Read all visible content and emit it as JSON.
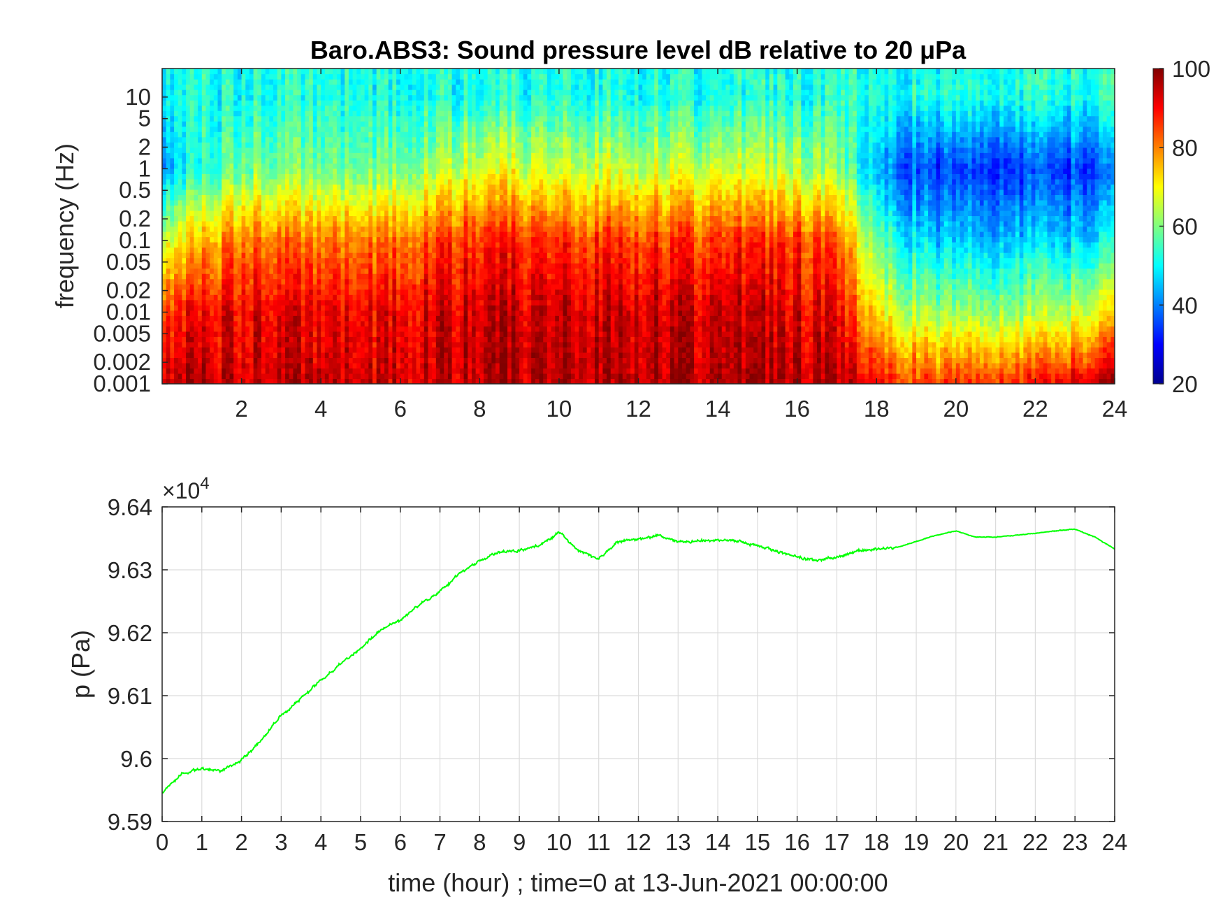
{
  "chart_data": [
    {
      "type": "heatmap",
      "title": "Baro.ABS3: Sound pressure level dB relative to 20 μPa",
      "ylabel": "frequency (Hz)",
      "xlabel": "",
      "x_tick_labels": [
        "2",
        "4",
        "6",
        "8",
        "10",
        "12",
        "14",
        "16",
        "18",
        "20",
        "22",
        "24"
      ],
      "y_tick_labels": [
        "10",
        "5",
        "2",
        "1",
        "0.5",
        "0.2",
        "0.1",
        "0.05",
        "0.02",
        "0.01",
        "0.005",
        "0.002",
        "0.001"
      ],
      "y_scale": "log",
      "xlim": [
        0,
        24
      ],
      "ylim": [
        0.001,
        25
      ],
      "colormap": "jet",
      "colorbar": {
        "ticks": [
          "20",
          "40",
          "60",
          "80",
          "100"
        ],
        "range": [
          20,
          100
        ]
      },
      "summary_spl_db": {
        "note_free": true,
        "hours": [
          0,
          2,
          4,
          6,
          8,
          10,
          12,
          14,
          16,
          17,
          18,
          19,
          20,
          22,
          24
        ],
        "freq_hz": [
          10,
          1,
          0.1,
          0.01,
          0.001
        ],
        "values": [
          [
            52,
            45,
            68,
            88,
            96
          ],
          [
            52,
            60,
            82,
            92,
            94
          ],
          [
            52,
            58,
            80,
            90,
            94
          ],
          [
            52,
            60,
            82,
            92,
            94
          ],
          [
            52,
            68,
            88,
            94,
            96
          ],
          [
            52,
            66,
            86,
            94,
            96
          ],
          [
            52,
            66,
            86,
            94,
            96
          ],
          [
            52,
            66,
            86,
            94,
            96
          ],
          [
            52,
            64,
            86,
            92,
            96
          ],
          [
            52,
            60,
            82,
            90,
            94
          ],
          [
            52,
            44,
            58,
            72,
            90
          ],
          [
            52,
            36,
            48,
            64,
            86
          ],
          [
            52,
            34,
            46,
            62,
            86
          ],
          [
            52,
            34,
            46,
            62,
            88
          ],
          [
            52,
            36,
            48,
            70,
            96
          ]
        ]
      }
    },
    {
      "type": "line",
      "title": "",
      "xlabel": "time (hour) ; time=0 at 13-Jun-2021 00:00:00",
      "ylabel": "p (Pa)",
      "exponent_label": "×10",
      "exponent_power": "4",
      "x_tick_labels": [
        "0",
        "1",
        "2",
        "3",
        "4",
        "5",
        "6",
        "7",
        "8",
        "9",
        "10",
        "11",
        "12",
        "13",
        "14",
        "15",
        "16",
        "17",
        "18",
        "19",
        "20",
        "21",
        "22",
        "23",
        "24"
      ],
      "y_tick_labels": [
        "9.59",
        "9.6",
        "9.61",
        "9.62",
        "9.63",
        "9.64"
      ],
      "xlim": [
        0,
        24
      ],
      "ylim": [
        95900,
        96400
      ],
      "grid": true,
      "color": "#00ff00",
      "series": [
        {
          "x": [
            0,
            0.5,
            1,
            1.5,
            2,
            2.5,
            3,
            3.5,
            4,
            4.5,
            5,
            5.5,
            6,
            6.5,
            7,
            7.5,
            8,
            8.5,
            9,
            9.5,
            10,
            10.5,
            11,
            11.5,
            12,
            12.5,
            13,
            13.5,
            14,
            14.5,
            15,
            15.5,
            16,
            16.5,
            17,
            17.5,
            18,
            18.5,
            19,
            19.5,
            20,
            20.5,
            21,
            21.5,
            22,
            22.5,
            23,
            23.5,
            24
          ],
          "y": [
            95945,
            95975,
            95985,
            95980,
            95998,
            96030,
            96070,
            96095,
            96125,
            96150,
            96175,
            96205,
            96220,
            96245,
            96265,
            96295,
            96315,
            96328,
            96330,
            96338,
            96360,
            96330,
            96318,
            96345,
            96348,
            96355,
            96345,
            96345,
            96348,
            96345,
            96338,
            96330,
            96320,
            96315,
            96320,
            96330,
            96332,
            96335,
            96345,
            96355,
            96362,
            96352,
            96352,
            96355,
            96358,
            96362,
            96365,
            96352,
            96333
          ]
        }
      ]
    }
  ]
}
